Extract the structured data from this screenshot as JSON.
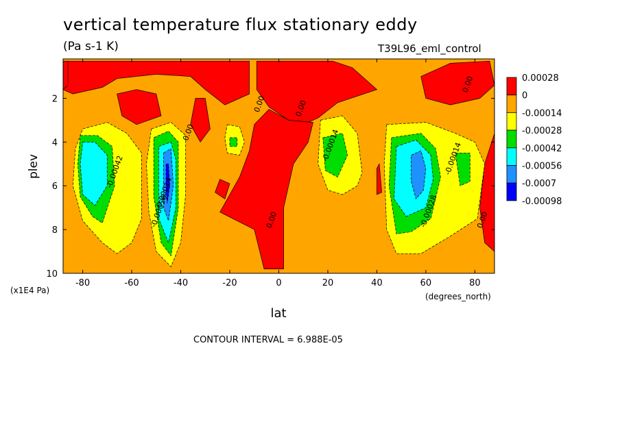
{
  "header": {
    "title": "vertical temperature flux stationary eddy",
    "units": "(Pa s-1 K)",
    "run_label": "T39L96_eml_control",
    "contour_interval": "CONTOUR INTERVAL = 6.988E-05"
  },
  "chart_data": {
    "type": "heatmap",
    "title": "vertical temperature flux stationary eddy",
    "subtitle": "(Pa s-1 K)",
    "xlabel": "lat",
    "xunits": "(degrees_north)",
    "ylabel": "plev",
    "yunits": "(x1E4 Pa)",
    "xlim": [
      -88,
      88
    ],
    "ylim": [
      10,
      0.2
    ],
    "x_ticks": [
      -80,
      -60,
      -40,
      -20,
      0,
      20,
      40,
      60,
      80
    ],
    "y_ticks": [
      2,
      4,
      6,
      8,
      10
    ],
    "colorbar": {
      "levels": [
        "0.00028",
        "0",
        "-0.00014",
        "-0.00028",
        "-0.00042",
        "-0.00056",
        "-0.0007",
        "-0.00098"
      ],
      "colors": [
        "#ff0000",
        "#ffa500",
        "#ffff00",
        "#00dd00",
        "#00ffff",
        "#1e90ff",
        "#0000ff"
      ]
    },
    "background_color": "#ffa500",
    "regions": [
      {
        "value": "positive",
        "color": "#ff0000",
        "points": [
          [
            -88,
            0.3
          ],
          [
            -12,
            0.3
          ],
          [
            -12,
            1.8
          ],
          [
            -22,
            2.3
          ],
          [
            -30,
            1.6
          ],
          [
            -36,
            1.0
          ],
          [
            -50,
            0.9
          ],
          [
            -66,
            1.1
          ],
          [
            -72,
            1.5
          ],
          [
            -84,
            1.8
          ],
          [
            -88,
            1.6
          ]
        ]
      },
      {
        "value": "positive",
        "color": "#ff0000",
        "points": [
          [
            -9,
            0.3
          ],
          [
            22,
            0.3
          ],
          [
            30,
            0.6
          ],
          [
            40,
            1.6
          ],
          [
            24,
            2.2
          ],
          [
            16,
            2.9
          ],
          [
            10,
            3.2
          ],
          [
            4,
            3.0
          ],
          [
            -4,
            2.4
          ],
          [
            -9,
            1.6
          ]
        ]
      },
      {
        "value": "positive",
        "color": "#ff0000",
        "points": [
          [
            -10,
            3.2
          ],
          [
            -4,
            2.5
          ],
          [
            4,
            3.0
          ],
          [
            14,
            3.1
          ],
          [
            12,
            4.0
          ],
          [
            6,
            5.0
          ],
          [
            2,
            7.0
          ],
          [
            2,
            9.8
          ],
          [
            -6,
            9.8
          ],
          [
            -10,
            8.0
          ],
          [
            -24,
            7.2
          ],
          [
            -16,
            5.6
          ],
          [
            -12,
            4.4
          ]
        ]
      },
      {
        "value": "positive",
        "color": "#ff0000",
        "points": [
          [
            -66,
            1.8
          ],
          [
            -58,
            1.6
          ],
          [
            -50,
            1.8
          ],
          [
            -48,
            2.8
          ],
          [
            -58,
            3.2
          ],
          [
            -64,
            2.8
          ]
        ]
      },
      {
        "value": "positive",
        "color": "#ff0000",
        "points": [
          [
            -34,
            2.0
          ],
          [
            -30,
            2.0
          ],
          [
            -28,
            3.4
          ],
          [
            -32,
            4.0
          ],
          [
            -36,
            3.2
          ]
        ]
      },
      {
        "value": "positive",
        "color": "#ff0000",
        "points": [
          [
            58,
            1.0
          ],
          [
            70,
            0.4
          ],
          [
            86,
            0.3
          ],
          [
            88,
            1.4
          ],
          [
            82,
            2.0
          ],
          [
            70,
            2.3
          ],
          [
            60,
            2.0
          ]
        ]
      },
      {
        "value": "positive",
        "color": "#ff0000",
        "points": [
          [
            84,
            5.0
          ],
          [
            88,
            3.6
          ],
          [
            88,
            9.0
          ],
          [
            84,
            8.6
          ],
          [
            82,
            7.0
          ]
        ]
      },
      {
        "value": "positive",
        "color": "#ff0000",
        "points": [
          [
            -88,
            0.3
          ],
          [
            -86,
            0.3
          ],
          [
            -86,
            1.4
          ],
          [
            -88,
            1.6
          ]
        ]
      },
      {
        "value": "positive",
        "color": "#ff0000",
        "points": [
          [
            -24,
            5.7
          ],
          [
            -20,
            5.9
          ],
          [
            -22,
            6.6
          ],
          [
            -26,
            6.3
          ]
        ]
      },
      {
        "value": "positive",
        "color": "#ff0000",
        "points": [
          [
            40,
            5.2
          ],
          [
            41,
            5.0
          ],
          [
            42,
            6.3
          ],
          [
            40,
            6.4
          ]
        ]
      },
      {
        "value": "-0.00014",
        "color": "#ffff00",
        "points": [
          [
            -80,
            3.4
          ],
          [
            -70,
            3.1
          ],
          [
            -62,
            3.6
          ],
          [
            -56,
            4.5
          ],
          [
            -56,
            7.5
          ],
          [
            -60,
            8.6
          ],
          [
            -66,
            9.1
          ],
          [
            -72,
            8.6
          ],
          [
            -80,
            7.6
          ],
          [
            -84,
            6.0
          ],
          [
            -83,
            4.3
          ]
        ]
      },
      {
        "value": "-0.00014",
        "color": "#ffff00",
        "points": [
          [
            -52,
            3.4
          ],
          [
            -44,
            3.1
          ],
          [
            -38,
            3.7
          ],
          [
            -38,
            6.4
          ],
          [
            -40,
            8.6
          ],
          [
            -44,
            9.7
          ],
          [
            -50,
            9.0
          ],
          [
            -53,
            7.2
          ],
          [
            -54,
            5.0
          ]
        ]
      },
      {
        "value": "-0.00014",
        "color": "#ffff00",
        "points": [
          [
            -21,
            3.2
          ],
          [
            -16,
            3.3
          ],
          [
            -14,
            4.0
          ],
          [
            -16,
            4.6
          ],
          [
            -21,
            4.5
          ],
          [
            -22,
            3.8
          ]
        ]
      },
      {
        "value": "-0.00014",
        "color": "#ffff00",
        "points": [
          [
            17,
            3.0
          ],
          [
            26,
            2.8
          ],
          [
            32,
            3.6
          ],
          [
            34,
            5.4
          ],
          [
            32,
            6.0
          ],
          [
            26,
            6.4
          ],
          [
            20,
            6.2
          ],
          [
            16,
            5.0
          ]
        ]
      },
      {
        "value": "-0.00014",
        "color": "#ffff00",
        "points": [
          [
            44,
            3.2
          ],
          [
            60,
            3.1
          ],
          [
            72,
            3.6
          ],
          [
            80,
            4.0
          ],
          [
            84,
            5.0
          ],
          [
            81,
            7.5
          ],
          [
            70,
            8.3
          ],
          [
            58,
            9.1
          ],
          [
            48,
            9.1
          ],
          [
            44,
            8.0
          ],
          [
            43,
            5.0
          ]
        ]
      },
      {
        "value": "-0.00028",
        "color": "#00dd00",
        "points": [
          [
            -81,
            3.7
          ],
          [
            -74,
            3.7
          ],
          [
            -68,
            4.2
          ],
          [
            -67,
            6.0
          ],
          [
            -72,
            7.7
          ],
          [
            -76,
            7.4
          ],
          [
            -81,
            6.5
          ],
          [
            -82,
            5.0
          ]
        ]
      },
      {
        "value": "-0.00028",
        "color": "#00dd00",
        "points": [
          [
            -51,
            3.8
          ],
          [
            -45,
            3.5
          ],
          [
            -41,
            4.0
          ],
          [
            -41,
            7.0
          ],
          [
            -44,
            9.2
          ],
          [
            -48,
            8.6
          ],
          [
            -51,
            6.5
          ]
        ]
      },
      {
        "value": "-0.00028",
        "color": "#00dd00",
        "points": [
          [
            -20,
            3.8
          ],
          [
            -17,
            3.8
          ],
          [
            -17,
            4.2
          ],
          [
            -20,
            4.2
          ]
        ]
      },
      {
        "value": "-0.00028",
        "color": "#00dd00",
        "points": [
          [
            18,
            3.8
          ],
          [
            26,
            3.6
          ],
          [
            28,
            4.6
          ],
          [
            24,
            5.6
          ],
          [
            19,
            5.3
          ]
        ]
      },
      {
        "value": "-0.00028",
        "color": "#00dd00",
        "points": [
          [
            46,
            3.8
          ],
          [
            58,
            3.6
          ],
          [
            64,
            4.3
          ],
          [
            66,
            5.6
          ],
          [
            62,
            7.5
          ],
          [
            54,
            8.1
          ],
          [
            48,
            8.2
          ],
          [
            45,
            6.0
          ]
        ]
      },
      {
        "value": "-0.00028",
        "color": "#00dd00",
        "points": [
          [
            72,
            4.5
          ],
          [
            78,
            4.5
          ],
          [
            78,
            5.8
          ],
          [
            74,
            6.0
          ]
        ]
      },
      {
        "value": "-0.00042",
        "color": "#00ffff",
        "points": [
          [
            -80,
            4.0
          ],
          [
            -75,
            4.0
          ],
          [
            -70,
            4.6
          ],
          [
            -70,
            6.0
          ],
          [
            -75,
            6.9
          ],
          [
            -80,
            6.4
          ],
          [
            -81,
            5.0
          ]
        ]
      },
      {
        "value": "-0.00042",
        "color": "#00ffff",
        "points": [
          [
            -49,
            4.2
          ],
          [
            -44,
            4.0
          ],
          [
            -42,
            4.8
          ],
          [
            -42,
            7.0
          ],
          [
            -45,
            8.6
          ],
          [
            -49,
            7.5
          ]
        ]
      },
      {
        "value": "-0.00042",
        "color": "#00ffff",
        "points": [
          [
            48,
            4.2
          ],
          [
            56,
            3.9
          ],
          [
            62,
            4.6
          ],
          [
            63,
            5.7
          ],
          [
            60,
            7.0
          ],
          [
            52,
            7.4
          ],
          [
            47,
            6.6
          ]
        ]
      },
      {
        "value": "-0.00056",
        "color": "#1e90ff",
        "points": [
          [
            -47,
            4.5
          ],
          [
            -44,
            4.3
          ],
          [
            -43,
            6.0
          ],
          [
            -45,
            7.6
          ],
          [
            -47,
            7.0
          ]
        ]
      },
      {
        "value": "-0.00056",
        "color": "#1e90ff",
        "points": [
          [
            54,
            4.6
          ],
          [
            58,
            4.4
          ],
          [
            60,
            5.2
          ],
          [
            59,
            6.2
          ],
          [
            56,
            6.6
          ],
          [
            54,
            5.8
          ]
        ]
      },
      {
        "value": "-0.0007",
        "color": "#0000ff",
        "points": [
          [
            -46,
            5.0
          ],
          [
            -45,
            5.0
          ],
          [
            -44.5,
            6.0
          ],
          [
            -45.5,
            6.8
          ],
          [
            -46,
            6.2
          ]
        ]
      }
    ],
    "annotations": [
      {
        "text": "0.00",
        "x": 78,
        "y": 1.4
      },
      {
        "text": "0.00",
        "x": 10,
        "y": 2.5
      },
      {
        "text": "0.00",
        "x": -7,
        "y": 2.3
      },
      {
        "text": "0.00",
        "x": -36,
        "y": 3.6
      },
      {
        "text": "0.00",
        "x": -2,
        "y": 7.6
      },
      {
        "text": "0.00",
        "x": 84,
        "y": 7.6
      },
      {
        "text": "-0.00014",
        "x": -46,
        "y": 6.4
      },
      {
        "text": "-0.00014",
        "x": 22,
        "y": 4.2
      },
      {
        "text": "-0.00014",
        "x": 72,
        "y": 4.8
      },
      {
        "text": "-0.00028",
        "x": 62,
        "y": 7.2
      },
      {
        "text": "-0.00042",
        "x": -66,
        "y": 5.4
      },
      {
        "text": "-0.00056",
        "x": -48,
        "y": 7.2
      }
    ]
  }
}
